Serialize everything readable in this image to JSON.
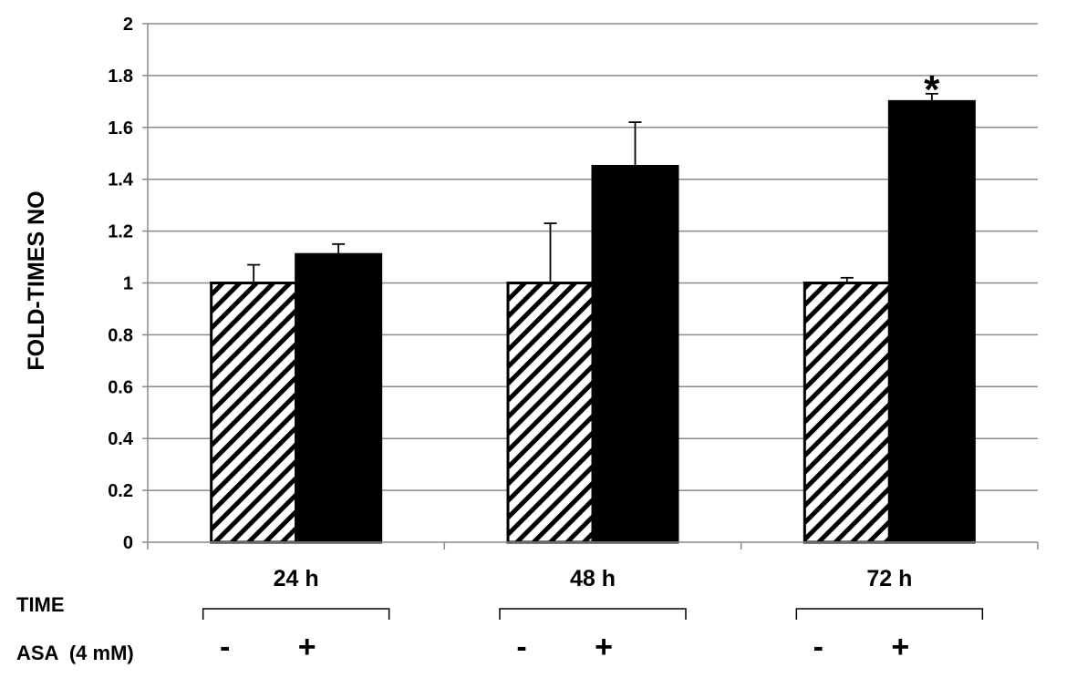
{
  "chart_data": {
    "type": "bar",
    "title": "",
    "xlabel": "",
    "ylabel": "FOLD-TIMES NO",
    "ylim": [
      0,
      2
    ],
    "yticks": [
      "0",
      "0.2",
      "0.4",
      "0.6",
      "0.8",
      "1",
      "1.2",
      "1.4",
      "1.6",
      "1.8",
      "2"
    ],
    "grid": true,
    "categories": [
      "24 h",
      "48 h",
      "72 h"
    ],
    "series": [
      {
        "key": "minus",
        "values": [
          1.0,
          1.0,
          1.0
        ],
        "errors": [
          0.07,
          0.23,
          0.02
        ],
        "fill": "hatched"
      },
      {
        "key": "plus",
        "values": [
          1.11,
          1.45,
          1.7
        ],
        "errors": [
          0.04,
          0.17,
          0.03
        ],
        "fill": "#000000"
      }
    ],
    "annotations": [
      {
        "category": "72 h",
        "series": "plus",
        "text": "*"
      }
    ],
    "conditions": {
      "time_label": "TIME",
      "asa_label": "ASA  (4 mM)",
      "signs": [
        "-",
        "+"
      ]
    }
  }
}
